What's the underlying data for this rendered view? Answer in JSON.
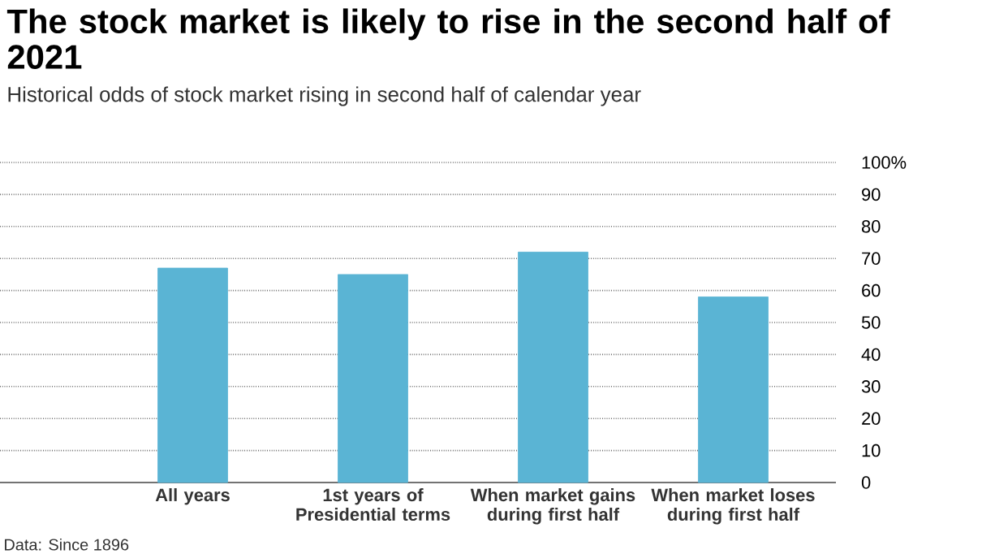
{
  "chart_data": {
    "type": "bar",
    "title": "The stock market is likely to rise in the second half of 2021",
    "subtitle": "Historical odds of stock market rising in second half of calendar year",
    "categories": [
      "All years",
      "1st years of Presidential terms",
      "When market gains during first half",
      "When market loses during first half"
    ],
    "values": [
      67,
      65,
      72,
      58
    ],
    "color": "#5ab4d4",
    "ylim": [
      0,
      100
    ],
    "yticks": [
      0,
      10,
      20,
      30,
      40,
      50,
      60,
      70,
      80,
      90,
      {
        "value": 100,
        "label": "100%"
      }
    ],
    "grid": "y",
    "annotations": [
      "Data: Since 1896"
    ]
  }
}
